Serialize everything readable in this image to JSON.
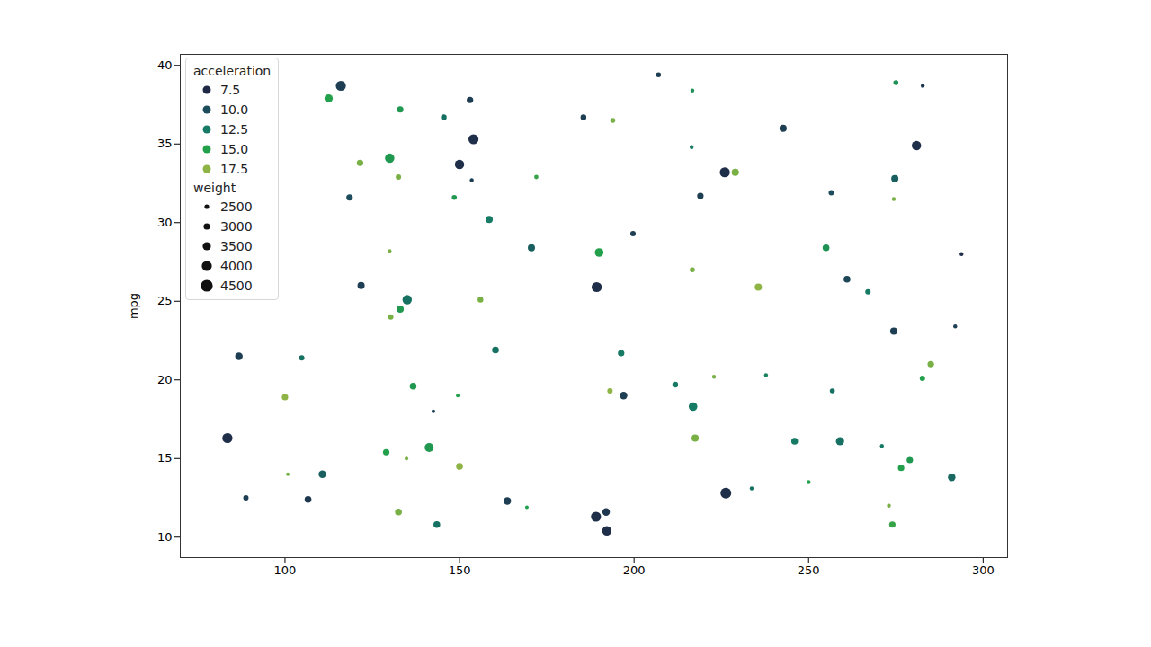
{
  "chart_data": {
    "type": "scatter",
    "y_label": "mpg",
    "xlim": [
      70,
      307
    ],
    "ylim": [
      8.7,
      40.7
    ],
    "xticks": [
      100,
      150,
      200,
      250,
      300
    ],
    "yticks": [
      10,
      15,
      20,
      25,
      30,
      35,
      40
    ],
    "legend": "upper left",
    "hue": {
      "title": "acceleration",
      "values": [
        {
          "value": 7.5,
          "label": "7.5"
        },
        {
          "value": 10,
          "label": "10.0"
        },
        {
          "value": 12.5,
          "label": "12.5"
        },
        {
          "value": 15,
          "label": "15.0"
        },
        {
          "value": 17.5,
          "label": "17.5"
        }
      ],
      "colors": [
        "#1f2846",
        "#1d4d5c",
        "#167a64",
        "#23a04b",
        "#8db444"
      ]
    },
    "size": {
      "title": "weight",
      "values": [
        2500,
        3000,
        3500,
        4000,
        4500
      ]
    },
    "points": [
      {
        "x": 116,
        "y": 38.7,
        "acceleration": 9,
        "weight": 4000
      },
      {
        "x": 112.5,
        "y": 37.9,
        "acceleration": 15,
        "weight": 3500
      },
      {
        "x": 133,
        "y": 37.2,
        "acceleration": 14.5,
        "weight": 3000
      },
      {
        "x": 145.5,
        "y": 36.7,
        "acceleration": 12,
        "weight": 2800
      },
      {
        "x": 153,
        "y": 37.8,
        "acceleration": 9,
        "weight": 3000
      },
      {
        "x": 154,
        "y": 35.3,
        "acceleration": 8,
        "weight": 4000
      },
      {
        "x": 130,
        "y": 34.1,
        "acceleration": 14.5,
        "weight": 3800
      },
      {
        "x": 121.5,
        "y": 33.8,
        "acceleration": 17,
        "weight": 3000
      },
      {
        "x": 132.5,
        "y": 32.9,
        "acceleration": 17,
        "weight": 2700
      },
      {
        "x": 150,
        "y": 33.7,
        "acceleration": 8,
        "weight": 3800
      },
      {
        "x": 153.5,
        "y": 32.7,
        "acceleration": 9,
        "weight": 2300
      },
      {
        "x": 148.5,
        "y": 31.6,
        "acceleration": 14.5,
        "weight": 2600
      },
      {
        "x": 118.5,
        "y": 31.6,
        "acceleration": 10,
        "weight": 3000
      },
      {
        "x": 158.5,
        "y": 30.2,
        "acceleration": 12.5,
        "weight": 3200
      },
      {
        "x": 172,
        "y": 32.9,
        "acceleration": 15.5,
        "weight": 2400
      },
      {
        "x": 185.5,
        "y": 36.7,
        "acceleration": 9,
        "weight": 2800
      },
      {
        "x": 193.9,
        "y": 36.5,
        "acceleration": 17,
        "weight": 2600
      },
      {
        "x": 207,
        "y": 39.4,
        "acceleration": 9,
        "weight": 2600
      },
      {
        "x": 216.7,
        "y": 38.4,
        "acceleration": 14,
        "weight": 2300
      },
      {
        "x": 216.5,
        "y": 34.8,
        "acceleration": 12.5,
        "weight": 2300
      },
      {
        "x": 226,
        "y": 33.2,
        "acceleration": 8,
        "weight": 4000
      },
      {
        "x": 229,
        "y": 33.2,
        "acceleration": 17,
        "weight": 3200
      },
      {
        "x": 219,
        "y": 31.7,
        "acceleration": 9,
        "weight": 3000
      },
      {
        "x": 242.7,
        "y": 36,
        "acceleration": 9,
        "weight": 3200
      },
      {
        "x": 275,
        "y": 38.9,
        "acceleration": 14,
        "weight": 2600
      },
      {
        "x": 282.7,
        "y": 38.7,
        "acceleration": 8.5,
        "weight": 2300
      },
      {
        "x": 280.9,
        "y": 34.9,
        "acceleration": 8,
        "weight": 3800
      },
      {
        "x": 274.7,
        "y": 32.8,
        "acceleration": 11,
        "weight": 3200
      },
      {
        "x": 274.4,
        "y": 31.5,
        "acceleration": 17,
        "weight": 2300
      },
      {
        "x": 256.5,
        "y": 31.9,
        "acceleration": 10,
        "weight": 2700
      },
      {
        "x": 255,
        "y": 28.4,
        "acceleration": 14,
        "weight": 3100
      },
      {
        "x": 261,
        "y": 26.4,
        "acceleration": 9.5,
        "weight": 3100
      },
      {
        "x": 267,
        "y": 25.6,
        "acceleration": 12.5,
        "weight": 2700
      },
      {
        "x": 293.8,
        "y": 28,
        "acceleration": 8,
        "weight": 2300
      },
      {
        "x": 274.4,
        "y": 23.1,
        "acceleration": 9,
        "weight": 3200
      },
      {
        "x": 292,
        "y": 23.4,
        "acceleration": 9,
        "weight": 2300
      },
      {
        "x": 285,
        "y": 21,
        "acceleration": 17,
        "weight": 3000
      },
      {
        "x": 282.6,
        "y": 20.1,
        "acceleration": 15,
        "weight": 2700
      },
      {
        "x": 256.8,
        "y": 19.3,
        "acceleration": 12,
        "weight": 2600
      },
      {
        "x": 246,
        "y": 16.1,
        "acceleration": 12.5,
        "weight": 3100
      },
      {
        "x": 259,
        "y": 16.1,
        "acceleration": 12,
        "weight": 3500
      },
      {
        "x": 250,
        "y": 13.5,
        "acceleration": 15,
        "weight": 2300
      },
      {
        "x": 271,
        "y": 15.8,
        "acceleration": 12.5,
        "weight": 2300
      },
      {
        "x": 276.5,
        "y": 14.4,
        "acceleration": 15,
        "weight": 3000
      },
      {
        "x": 279,
        "y": 14.9,
        "acceleration": 14.5,
        "weight": 3000
      },
      {
        "x": 274,
        "y": 10.8,
        "acceleration": 15.5,
        "weight": 3000
      },
      {
        "x": 291,
        "y": 13.8,
        "acceleration": 11.5,
        "weight": 3300
      },
      {
        "x": 273,
        "y": 12,
        "acceleration": 17,
        "weight": 2300
      },
      {
        "x": 226.3,
        "y": 12.8,
        "acceleration": 8,
        "weight": 4200
      },
      {
        "x": 233.7,
        "y": 13.1,
        "acceleration": 12,
        "weight": 2300
      },
      {
        "x": 217.5,
        "y": 16.3,
        "acceleration": 17,
        "weight": 3200
      },
      {
        "x": 216.9,
        "y": 18.3,
        "acceleration": 12.5,
        "weight": 3600
      },
      {
        "x": 211.8,
        "y": 19.7,
        "acceleration": 12.5,
        "weight": 2800
      },
      {
        "x": 222.9,
        "y": 20.2,
        "acceleration": 17,
        "weight": 2300
      },
      {
        "x": 237.8,
        "y": 20.3,
        "acceleration": 13,
        "weight": 2300
      },
      {
        "x": 216.7,
        "y": 27,
        "acceleration": 17,
        "weight": 2600
      },
      {
        "x": 235.6,
        "y": 25.9,
        "acceleration": 17.5,
        "weight": 3200
      },
      {
        "x": 199.7,
        "y": 29.3,
        "acceleration": 9,
        "weight": 2700
      },
      {
        "x": 190,
        "y": 28.1,
        "acceleration": 15,
        "weight": 3600
      },
      {
        "x": 189.3,
        "y": 25.9,
        "acceleration": 8,
        "weight": 4000
      },
      {
        "x": 170.6,
        "y": 28.4,
        "acceleration": 11,
        "weight": 3200
      },
      {
        "x": 156,
        "y": 25.1,
        "acceleration": 17,
        "weight": 2800
      },
      {
        "x": 135,
        "y": 25.1,
        "acceleration": 12,
        "weight": 3800
      },
      {
        "x": 133,
        "y": 24.5,
        "acceleration": 14.5,
        "weight": 3200
      },
      {
        "x": 130.3,
        "y": 24,
        "acceleration": 17,
        "weight": 2700
      },
      {
        "x": 130,
        "y": 28.2,
        "acceleration": 17,
        "weight": 2200
      },
      {
        "x": 121.8,
        "y": 26,
        "acceleration": 9,
        "weight": 3200
      },
      {
        "x": 136.7,
        "y": 19.6,
        "acceleration": 14.5,
        "weight": 3100
      },
      {
        "x": 160.3,
        "y": 21.9,
        "acceleration": 12,
        "weight": 3100
      },
      {
        "x": 142.5,
        "y": 18,
        "acceleration": 9,
        "weight": 2200
      },
      {
        "x": 149.5,
        "y": 19,
        "acceleration": 15,
        "weight": 2200
      },
      {
        "x": 196.3,
        "y": 21.7,
        "acceleration": 12.5,
        "weight": 3000
      },
      {
        "x": 193.1,
        "y": 19.3,
        "acceleration": 17.5,
        "weight": 2700
      },
      {
        "x": 197,
        "y": 19,
        "acceleration": 9,
        "weight": 3300
      },
      {
        "x": 141.3,
        "y": 15.7,
        "acceleration": 14.5,
        "weight": 3700
      },
      {
        "x": 129,
        "y": 15.4,
        "acceleration": 15,
        "weight": 3000
      },
      {
        "x": 134.8,
        "y": 15,
        "acceleration": 17,
        "weight": 2200
      },
      {
        "x": 150,
        "y": 14.5,
        "acceleration": 17.5,
        "weight": 3100
      },
      {
        "x": 143.5,
        "y": 10.8,
        "acceleration": 12,
        "weight": 3100
      },
      {
        "x": 132.5,
        "y": 11.6,
        "acceleration": 17,
        "weight": 3100
      },
      {
        "x": 163.7,
        "y": 12.3,
        "acceleration": 9,
        "weight": 3300
      },
      {
        "x": 169.3,
        "y": 11.9,
        "acceleration": 15,
        "weight": 2200
      },
      {
        "x": 189.1,
        "y": 11.3,
        "acceleration": 8,
        "weight": 4000
      },
      {
        "x": 192,
        "y": 11.6,
        "acceleration": 8.5,
        "weight": 3300
      },
      {
        "x": 192.2,
        "y": 10.4,
        "acceleration": 8,
        "weight": 3800
      },
      {
        "x": 100,
        "y": 18.9,
        "acceleration": 17.5,
        "weight": 3000
      },
      {
        "x": 86.8,
        "y": 21.5,
        "acceleration": 9,
        "weight": 3300
      },
      {
        "x": 104.8,
        "y": 21.4,
        "acceleration": 12,
        "weight": 2700
      },
      {
        "x": 83.5,
        "y": 16.3,
        "acceleration": 8,
        "weight": 4000
      },
      {
        "x": 100.8,
        "y": 14,
        "acceleration": 17,
        "weight": 2200
      },
      {
        "x": 110.7,
        "y": 14,
        "acceleration": 11,
        "weight": 3300
      },
      {
        "x": 88.8,
        "y": 12.5,
        "acceleration": 9,
        "weight": 2700
      },
      {
        "x": 106.6,
        "y": 12.4,
        "acceleration": 8.5,
        "weight": 3100
      }
    ]
  }
}
